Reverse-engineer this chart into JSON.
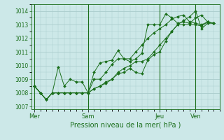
{
  "background_color": "#cce8e8",
  "grid_color": "#aacccc",
  "line_color": "#1a6e1a",
  "marker_color": "#1a6e1a",
  "xlabel": "Pression niveau de la mer( hPa )",
  "ylim": [
    1006.8,
    1014.5
  ],
  "yticks": [
    1007,
    1008,
    1009,
    1010,
    1011,
    1012,
    1013,
    1014
  ],
  "day_labels": [
    "Mer",
    "Sam",
    "Jeu",
    "Ven"
  ],
  "day_positions": [
    0,
    9,
    21,
    27
  ],
  "xlim": [
    -0.5,
    31
  ],
  "series": [
    [
      1008.5,
      1008.0,
      1007.5,
      1008.0,
      1009.9,
      1008.5,
      1009.0,
      1008.8,
      1008.8,
      1008.0,
      1009.5,
      1010.2,
      1010.3,
      1010.4,
      1011.1,
      1010.5,
      1010.3,
      1010.5,
      1010.9,
      1013.0,
      1013.0,
      1013.0,
      1013.8,
      1013.5,
      1013.1,
      1013.2,
      1013.1,
      1013.5,
      1013.7,
      1013.2,
      1013.1
    ],
    [
      1008.5,
      1008.0,
      1007.5,
      1008.0,
      1008.0,
      1008.0,
      1008.0,
      1008.0,
      1008.0,
      1008.0,
      1009.0,
      1009.0,
      1009.5,
      1010.1,
      1010.5,
      1010.5,
      1010.5,
      1011.0,
      1011.5,
      1012.0,
      1012.4,
      1012.7,
      1013.0,
      1013.4,
      1013.6,
      1013.7,
      1013.2,
      1013.1,
      1013.0,
      1013.2,
      1013.1
    ],
    [
      1008.5,
      1008.0,
      1007.5,
      1008.0,
      1008.0,
      1008.0,
      1008.0,
      1008.0,
      1008.0,
      1008.0,
      1008.3,
      1008.5,
      1008.8,
      1009.0,
      1009.4,
      1009.5,
      1009.8,
      1009.5,
      1009.4,
      1010.4,
      1010.8,
      1011.0,
      1011.8,
      1012.5,
      1013.0,
      1013.3,
      1013.6,
      1014.0,
      1012.7,
      1013.1,
      1013.1
    ],
    [
      1008.5,
      1008.0,
      1007.5,
      1008.0,
      1008.0,
      1008.0,
      1008.0,
      1008.0,
      1008.0,
      1008.0,
      1008.3,
      1008.5,
      1008.7,
      1009.0,
      1009.5,
      1009.8,
      1010.0,
      1010.3,
      1010.3,
      1010.5,
      1011.0,
      1011.5,
      1012.0,
      1012.5,
      1013.0,
      1013.0,
      1013.0,
      1013.0,
      1012.9,
      1013.2,
      1013.1
    ]
  ]
}
